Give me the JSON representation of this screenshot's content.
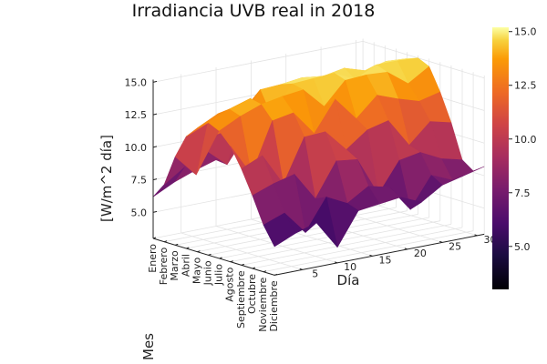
{
  "chart_data": {
    "type": "surface3d",
    "title": "Irradiancia UVB real in 2018",
    "xlabel": "Mes",
    "ylabel": "Día",
    "zlabel": "[W/m^2 día]",
    "months": [
      "Enero",
      "Febrero",
      "Marzo",
      "Abril",
      "Mayo",
      "Junio",
      "Julio",
      "Agosto",
      "Septiembre",
      "Octubre",
      "Noviembre",
      "Diciembre"
    ],
    "day_ticks": [
      5,
      10,
      15,
      20,
      25,
      30
    ],
    "z_ticks": [
      "5.0",
      "7.5",
      "10.0",
      "12.5",
      "15.0"
    ],
    "z_range": [
      3,
      15.2
    ],
    "colorbar": {
      "min": 3,
      "max": 15.2,
      "ticks": [
        "5.0",
        "7.5",
        "10.0",
        "12.5",
        "15.0"
      ],
      "colormap": "inferno"
    },
    "grid": true,
    "day_values": [
      1,
      4,
      7,
      10,
      13,
      16,
      19,
      22,
      25,
      28,
      31
    ],
    "z": [
      [
        6.2,
        7.0,
        7.6,
        8.1,
        8.4,
        8.6,
        8.5,
        8.7,
        8.9,
        9.1,
        9.2
      ],
      [
        7.4,
        8.5,
        9.4,
        8.0,
        10.2,
        9.8,
        10.6,
        10.9,
        11.2,
        11.5,
        11.9
      ],
      [
        9.8,
        8.1,
        10.9,
        11.2,
        9.0,
        12.0,
        10.3,
        12.4,
        11.0,
        12.6,
        12.8
      ],
      [
        11.6,
        12.3,
        12.9,
        13.2,
        13.4,
        13.5,
        12.2,
        13.6,
        13.4,
        13.7,
        13.5
      ],
      [
        12.5,
        13.3,
        12.1,
        14.5,
        14.6,
        14.8,
        14.6,
        14.9,
        14.4,
        14.8,
        14.7
      ],
      [
        13.2,
        13.9,
        14.4,
        12.8,
        14.9,
        15.0,
        15.1,
        14.3,
        15.1,
        15.1,
        15.0
      ],
      [
        12.8,
        13.6,
        14.2,
        14.5,
        14.7,
        13.1,
        14.8,
        14.9,
        14.8,
        13.6,
        14.6
      ],
      [
        11.9,
        9.4,
        13.2,
        13.5,
        11.6,
        13.9,
        12.1,
        13.6,
        13.0,
        12.5,
        12.9
      ],
      [
        10.4,
        11.1,
        8.6,
        11.9,
        12.0,
        10.3,
        11.5,
        11.9,
        9.7,
        11.2,
        10.8
      ],
      [
        8.6,
        9.2,
        9.6,
        7.4,
        10.0,
        9.8,
        6.8,
        9.1,
        9.4,
        8.6,
        8.2
      ],
      [
        6.6,
        7.2,
        5.4,
        7.8,
        7.0,
        8.0,
        7.6,
        5.6,
        7.9,
        7.2,
        7.6
      ],
      [
        5.2,
        5.9,
        6.4,
        4.2,
        6.7,
        6.9,
        7.1,
        6.4,
        7.4,
        7.8,
        8.2
      ]
    ]
  }
}
